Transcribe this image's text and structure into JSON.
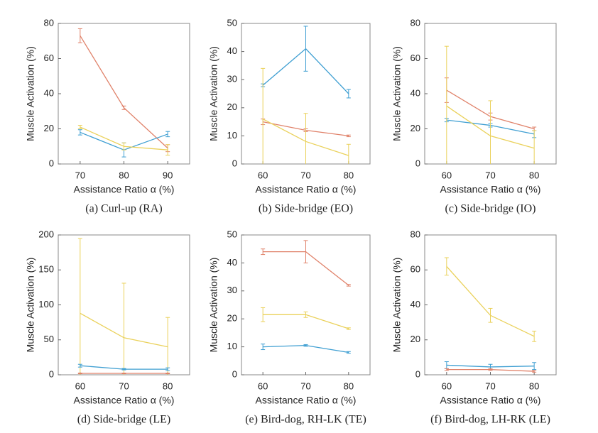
{
  "chart_data": [
    {
      "type": "line",
      "title": "(a) Curl-up (RA)",
      "xlabel": "Assistance Ratio α (%)",
      "ylabel": "Muscle Activation (%)",
      "x": [
        70,
        80,
        90
      ],
      "xlim": [
        65,
        95
      ],
      "xticks": [
        70,
        80,
        90
      ],
      "ylim": [
        0,
        80
      ],
      "yticks": [
        0,
        20,
        40,
        60,
        80
      ],
      "series": [
        {
          "color": "#e0826a",
          "values": [
            73,
            32,
            9
          ],
          "errors": [
            4,
            1,
            2
          ]
        },
        {
          "color": "#3f9fd2",
          "values": [
            18,
            8,
            17
          ],
          "errors": [
            1.5,
            4,
            1.5
          ]
        },
        {
          "color": "#ead15a",
          "values": [
            21,
            10,
            8
          ],
          "errors": [
            1,
            2,
            3
          ]
        }
      ]
    },
    {
      "type": "line",
      "title": "(b) Side-bridge (EO)",
      "xlabel": "Assistance Ratio α (%)",
      "ylabel": "Muscle Activation (%)",
      "x": [
        60,
        70,
        80
      ],
      "xlim": [
        55,
        85
      ],
      "xticks": [
        60,
        70,
        80
      ],
      "ylim": [
        0,
        50
      ],
      "yticks": [
        0,
        10,
        20,
        30,
        40,
        50
      ],
      "series": [
        {
          "color": "#3f9fd2",
          "values": [
            28,
            41,
            25
          ],
          "errors": [
            0.5,
            8,
            1.5
          ]
        },
        {
          "color": "#e0826a",
          "values": [
            15,
            12,
            10
          ],
          "errors": [
            1,
            0.5,
            0.3
          ]
        },
        {
          "color": "#ead15a",
          "values": [
            16,
            8,
            3
          ],
          "errors": [
            18,
            10,
            4
          ]
        }
      ]
    },
    {
      "type": "line",
      "title": "(c) Side-bridge (IO)",
      "xlabel": "Assistance Ratio α (%)",
      "ylabel": "Muscle Activation (%)",
      "x": [
        60,
        70,
        80
      ],
      "xlim": [
        55,
        85
      ],
      "xticks": [
        60,
        70,
        80
      ],
      "ylim": [
        0,
        80
      ],
      "yticks": [
        0,
        20,
        40,
        60,
        80
      ],
      "series": [
        {
          "color": "#e0826a",
          "values": [
            42,
            27,
            20
          ],
          "errors": [
            7,
            2,
            1
          ]
        },
        {
          "color": "#3f9fd2",
          "values": [
            25,
            22,
            17
          ],
          "errors": [
            1,
            1,
            2
          ]
        },
        {
          "color": "#ead15a",
          "values": [
            33,
            16,
            9
          ],
          "errors": [
            34,
            20,
            10
          ]
        }
      ]
    },
    {
      "type": "line",
      "title": "(d) Side-bridge (LE)",
      "xlabel": "Assistance Ratio α (%)",
      "ylabel": "Muscle Activation (%)",
      "x": [
        60,
        70,
        80
      ],
      "xlim": [
        55,
        85
      ],
      "xticks": [
        60,
        70,
        80
      ],
      "ylim": [
        0,
        200
      ],
      "yticks": [
        0,
        50,
        100,
        150,
        200
      ],
      "series": [
        {
          "color": "#ead15a",
          "values": [
            88,
            53,
            40
          ],
          "errors": [
            107,
            78,
            42
          ]
        },
        {
          "color": "#3f9fd2",
          "values": [
            13,
            8,
            8
          ],
          "errors": [
            2,
            1,
            2
          ]
        },
        {
          "color": "#e0826a",
          "values": [
            2,
            2,
            2
          ],
          "errors": [
            0.5,
            0.5,
            0.5
          ]
        }
      ]
    },
    {
      "type": "line",
      "title": "(e) Bird-dog, RH-LK (TE)",
      "xlabel": "Assistance Ratio α (%)",
      "ylabel": "Muscle Activation (%)",
      "x": [
        60,
        70,
        80
      ],
      "xlim": [
        55,
        85
      ],
      "xticks": [
        60,
        70,
        80
      ],
      "ylim": [
        0,
        50
      ],
      "yticks": [
        0,
        10,
        20,
        30,
        40,
        50
      ],
      "series": [
        {
          "color": "#e0826a",
          "values": [
            44,
            44,
            32
          ],
          "errors": [
            1,
            4,
            0.3
          ]
        },
        {
          "color": "#ead15a",
          "values": [
            21.5,
            21.5,
            16.5
          ],
          "errors": [
            2.5,
            1,
            0.3
          ]
        },
        {
          "color": "#3f9fd2",
          "values": [
            10,
            10.5,
            8
          ],
          "errors": [
            1,
            0.3,
            0.3
          ]
        }
      ]
    },
    {
      "type": "line",
      "title": "(f) Bird-dog, LH-RK (LE)",
      "xlabel": "Assistance Ratio α (%)",
      "ylabel": "Muscle Activation (%)",
      "x": [
        60,
        70,
        80
      ],
      "xlim": [
        55,
        85
      ],
      "xticks": [
        60,
        70,
        80
      ],
      "ylim": [
        0,
        80
      ],
      "yticks": [
        0,
        20,
        40,
        60,
        80
      ],
      "series": [
        {
          "color": "#ead15a",
          "values": [
            62,
            34,
            22
          ],
          "errors": [
            5,
            4,
            3
          ]
        },
        {
          "color": "#3f9fd2",
          "values": [
            5.5,
            4.5,
            5
          ],
          "errors": [
            2,
            1.5,
            2
          ]
        },
        {
          "color": "#e0826a",
          "values": [
            3,
            3,
            2
          ],
          "errors": [
            0.5,
            0.5,
            0.5
          ]
        }
      ]
    }
  ]
}
